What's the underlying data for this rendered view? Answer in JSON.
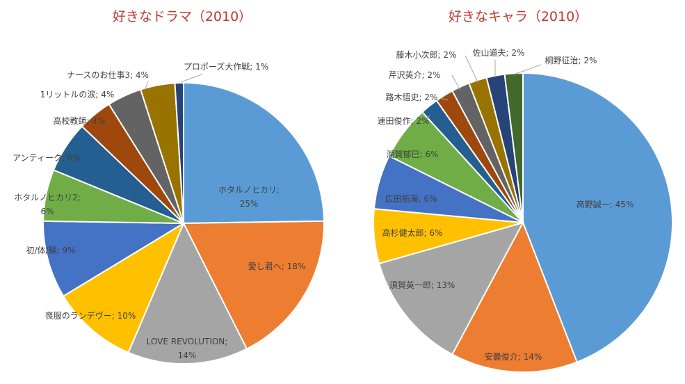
{
  "chart_data": [
    {
      "type": "pie",
      "title": "好きなドラマ（2010）",
      "slices": [
        {
          "label": "ホタルノヒカリ",
          "value": 25,
          "text": "ホタルノヒカリ;",
          "text2": "25%",
          "color": "#5b9bd5"
        },
        {
          "label": "愛し君へ",
          "value": 18,
          "text": "愛し君へ; 18%",
          "color": "#ed7d31"
        },
        {
          "label": "LOVE REVOLUTION",
          "value": 14,
          "text": "LOVE REVOLUTION;",
          "text2": "14%",
          "color": "#a5a5a5"
        },
        {
          "label": "喪服のランデヴー",
          "value": 10,
          "text": "喪服のランデヴー; 10%",
          "color": "#ffc000"
        },
        {
          "label": "初/体/験",
          "value": 9,
          "text": "初/体/験; 9%",
          "color": "#4472c4"
        },
        {
          "label": "ホタルノヒカリ2",
          "value": 6,
          "text": "ホタルノヒカリ2;",
          "text2": "6%",
          "color": "#70ad47"
        },
        {
          "label": "アンティーク",
          "value": 6,
          "text": "アンティーク; 6%",
          "color": "#255e91"
        },
        {
          "label": "高校教師",
          "value": 4,
          "text": "高校教師; 4%",
          "color": "#9e480e"
        },
        {
          "label": "1リットルの涙",
          "value": 4,
          "text": "1リットルの涙; 4%",
          "color": "#636363"
        },
        {
          "label": "ナースのお仕事3",
          "value": 4,
          "text": "ナースのお仕事3; 4%",
          "color": "#997300"
        },
        {
          "label": "プロポーズ大作戦",
          "value": 1,
          "text": "プロポーズ大作戦; 1%",
          "color": "#264478"
        }
      ]
    },
    {
      "type": "pie",
      "title": "好きなキャラ（2010）",
      "slices": [
        {
          "label": "高野誠一",
          "value": 45,
          "text": "高野誠一; 45%",
          "color": "#5b9bd5"
        },
        {
          "label": "安曇俊介",
          "value": 14,
          "text": "安曇俊介; 14%",
          "color": "#ed7d31"
        },
        {
          "label": "須賀英一郎",
          "value": 13,
          "text": "須賀英一郎; 13%",
          "color": "#a5a5a5"
        },
        {
          "label": "高杉健太郎",
          "value": 6,
          "text": "高杉健太郎; 6%",
          "color": "#ffc000"
        },
        {
          "label": "広田拓海",
          "value": 6,
          "text": "広田拓海; 6%",
          "color": "#4472c4"
        },
        {
          "label": "湖賀郁巳",
          "value": 6,
          "text": "湖賀郁巳; 6%",
          "color": "#70ad47"
        },
        {
          "label": "速田俊作",
          "value": 2,
          "text": "速田俊作; 2%",
          "color": "#255e91"
        },
        {
          "label": "路木悟史",
          "value": 2,
          "text": "路木悟史; 2%",
          "color": "#9e480e"
        },
        {
          "label": "芹沢英介",
          "value": 2,
          "text": "芹沢英介; 2%",
          "color": "#636363"
        },
        {
          "label": "藤木小次郎",
          "value": 2,
          "text": "藤木小次郎; 2%",
          "color": "#997300"
        },
        {
          "label": "佐山道夫",
          "value": 2,
          "text": "佐山道夫; 2%",
          "color": "#264478"
        },
        {
          "label": "桐野征治",
          "value": 2,
          "text": "桐野征治; 2%",
          "color": "#43682b"
        }
      ]
    }
  ]
}
